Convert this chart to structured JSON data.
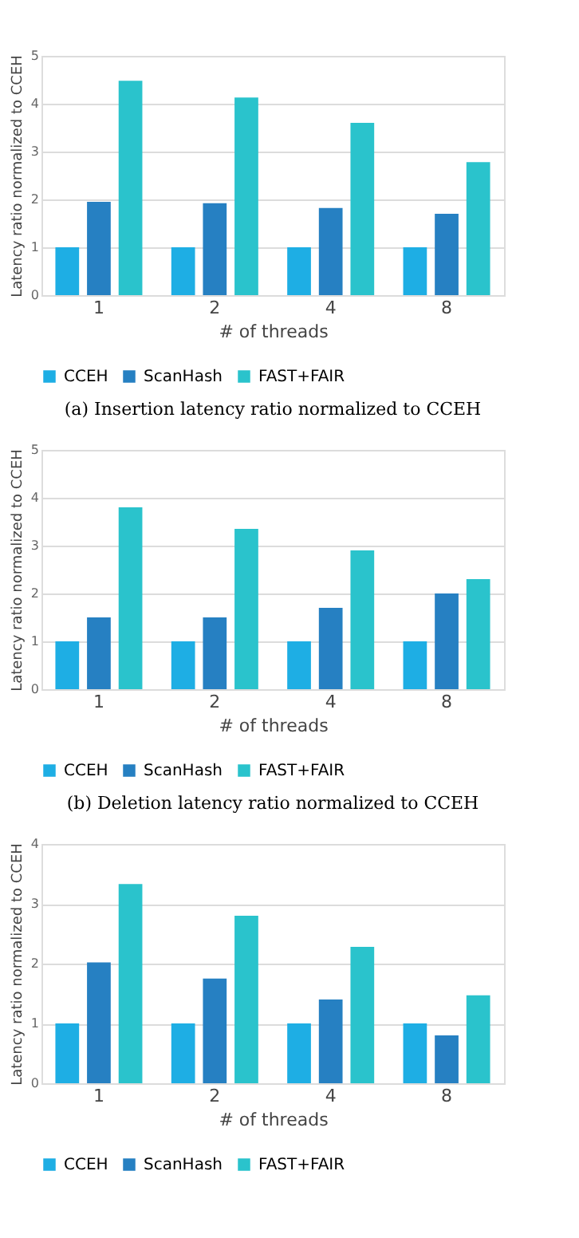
{
  "chart_data": [
    {
      "type": "bar",
      "categories": [
        "1",
        "2",
        "4",
        "8"
      ],
      "xlabel": "# of threads",
      "ylabel": "Latency ratio normalized to CCEH",
      "ylim": [
        0,
        5
      ],
      "yticks": [
        0,
        1,
        2,
        3,
        4,
        5
      ],
      "grid": "y",
      "legend": "bottom",
      "annotations": [
        "(a) Insertion latency ratio normalized to CCEH"
      ],
      "series": [
        {
          "name": "CCEH",
          "color": "#1eaee4",
          "values": [
            1,
            1,
            1,
            1
          ]
        },
        {
          "name": "ScanHash",
          "color": "#2680c2",
          "values": [
            1.95,
            1.92,
            1.82,
            1.7
          ]
        },
        {
          "name": "FAST+FAIR",
          "color": "#2ac3cc",
          "values": [
            4.48,
            4.13,
            3.6,
            2.78
          ]
        }
      ]
    },
    {
      "type": "bar",
      "categories": [
        "1",
        "2",
        "4",
        "8"
      ],
      "xlabel": "# of threads",
      "ylabel": "Latency ratio normalized to CCEH",
      "ylim": [
        0,
        5
      ],
      "yticks": [
        0,
        1,
        2,
        3,
        4,
        5
      ],
      "grid": "y",
      "legend": "bottom",
      "annotations": [
        "(b) Deletion latency ratio normalized to CCEH"
      ],
      "series": [
        {
          "name": "CCEH",
          "color": "#1eaee4",
          "values": [
            1,
            1,
            1,
            1
          ]
        },
        {
          "name": "ScanHash",
          "color": "#2680c2",
          "values": [
            1.5,
            1.5,
            1.7,
            2.0
          ]
        },
        {
          "name": "FAST+FAIR",
          "color": "#2ac3cc",
          "values": [
            3.8,
            3.35,
            2.9,
            2.3
          ]
        }
      ]
    },
    {
      "type": "bar",
      "categories": [
        "1",
        "2",
        "4",
        "8"
      ],
      "xlabel": "# of threads",
      "ylabel": "Latency ratio normalized to CCEH",
      "ylim": [
        0,
        4
      ],
      "yticks": [
        0,
        1,
        2,
        3,
        4
      ],
      "grid": "y",
      "legend": "bottom",
      "series": [
        {
          "name": "CCEH",
          "color": "#1eaee4",
          "values": [
            1,
            1,
            1,
            1
          ]
        },
        {
          "name": "ScanHash",
          "color": "#2680c2",
          "values": [
            2.02,
            1.75,
            1.4,
            0.8
          ]
        },
        {
          "name": "FAST+FAIR",
          "color": "#2ac3cc",
          "values": [
            3.33,
            2.8,
            2.28,
            1.47
          ]
        }
      ]
    }
  ]
}
